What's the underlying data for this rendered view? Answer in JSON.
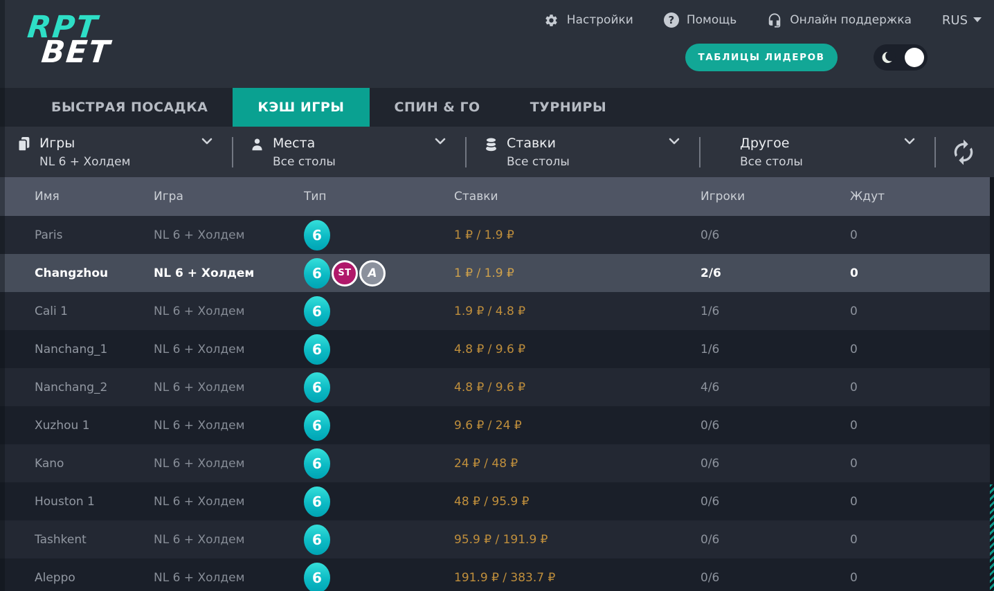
{
  "header": {
    "logo_line1": "RPT",
    "logo_line2": "BET",
    "settings_label": "Настройки",
    "help_label": "Помощь",
    "help_glyph": "?",
    "support_label": "Онлайн поддержка",
    "language": "RUS",
    "leaderboards_button": "ТАБЛИЦЫ ЛИДЕРОВ",
    "theme_toggle_on": true
  },
  "nav": {
    "tabs": [
      {
        "label": "БЫСТРАЯ ПОСАДКА",
        "active": false
      },
      {
        "label": "КЭШ ИГРЫ",
        "active": true
      },
      {
        "label": "СПИН & ГО",
        "active": false
      },
      {
        "label": "ТУРНИРЫ",
        "active": false
      }
    ]
  },
  "filters": [
    {
      "icon": "cards-icon",
      "label": "Игры",
      "value": "NL 6 + Холдем"
    },
    {
      "icon": "person-icon",
      "label": "Места",
      "value": "Все столы"
    },
    {
      "icon": "chips-icon",
      "label": "Ставки",
      "value": "Все столы"
    },
    {
      "icon": "",
      "label": "Другое",
      "value": "Все столы"
    }
  ],
  "table": {
    "columns": [
      "Имя",
      "Игра",
      "Тип",
      "Ставки",
      "Игроки",
      "Ждут"
    ],
    "rows": [
      {
        "name": "Paris",
        "game": "NL 6 + Холдем",
        "type": "6",
        "badges": [],
        "stakes": "1 ₽ / 1.9 ₽",
        "players": "0/6",
        "waiting": "0",
        "selected": false
      },
      {
        "name": "Changzhou",
        "game": "NL 6 + Холдем",
        "type": "6",
        "badges": [
          "ST",
          "A"
        ],
        "stakes": "1 ₽ / 1.9 ₽",
        "players": "2/6",
        "waiting": "0",
        "selected": true
      },
      {
        "name": "Cali 1",
        "game": "NL 6 + Холдем",
        "type": "6",
        "badges": [],
        "stakes": "1.9 ₽ / 4.8 ₽",
        "players": "1/6",
        "waiting": "0",
        "selected": false
      },
      {
        "name": "Nanchang_1",
        "game": "NL 6 + Холдем",
        "type": "6",
        "badges": [],
        "stakes": "4.8 ₽ / 9.6 ₽",
        "players": "1/6",
        "waiting": "0",
        "selected": false
      },
      {
        "name": "Nanchang_2",
        "game": "NL 6 + Холдем",
        "type": "6",
        "badges": [],
        "stakes": "4.8 ₽ / 9.6 ₽",
        "players": "4/6",
        "waiting": "0",
        "selected": false
      },
      {
        "name": "Xuzhou 1",
        "game": "NL 6 + Холдем",
        "type": "6",
        "badges": [],
        "stakes": "9.6 ₽ / 24 ₽",
        "players": "0/6",
        "waiting": "0",
        "selected": false
      },
      {
        "name": "Kano",
        "game": "NL 6 + Холдем",
        "type": "6",
        "badges": [],
        "stakes": "24 ₽ / 48 ₽",
        "players": "0/6",
        "waiting": "0",
        "selected": false
      },
      {
        "name": "Houston 1",
        "game": "NL 6 + Холдем",
        "type": "6",
        "badges": [],
        "stakes": "48 ₽ / 95.9 ₽",
        "players": "0/6",
        "waiting": "0",
        "selected": false
      },
      {
        "name": "Tashkent",
        "game": "NL 6 + Холдем",
        "type": "6",
        "badges": [],
        "stakes": "95.9 ₽ / 191.9 ₽",
        "players": "0/6",
        "waiting": "0",
        "selected": false
      },
      {
        "name": "Aleppo",
        "game": "NL 6 + Холдем",
        "type": "6",
        "badges": [],
        "stakes": "191.9 ₽ / 383.7 ₽",
        "players": "0/6",
        "waiting": "0",
        "selected": false
      }
    ]
  },
  "colors": {
    "accent": "#0aa191",
    "accent_button": "#12a796",
    "logo_teal": "#2edec6",
    "stakes_text": "#c08f3c",
    "badge_six": "#0cbac4",
    "badge_st": "#b0186a",
    "badge_a": "#8b919d",
    "selected_row": "#464d5a",
    "row_light": "#232833",
    "row_dark": "#1a1f29"
  }
}
